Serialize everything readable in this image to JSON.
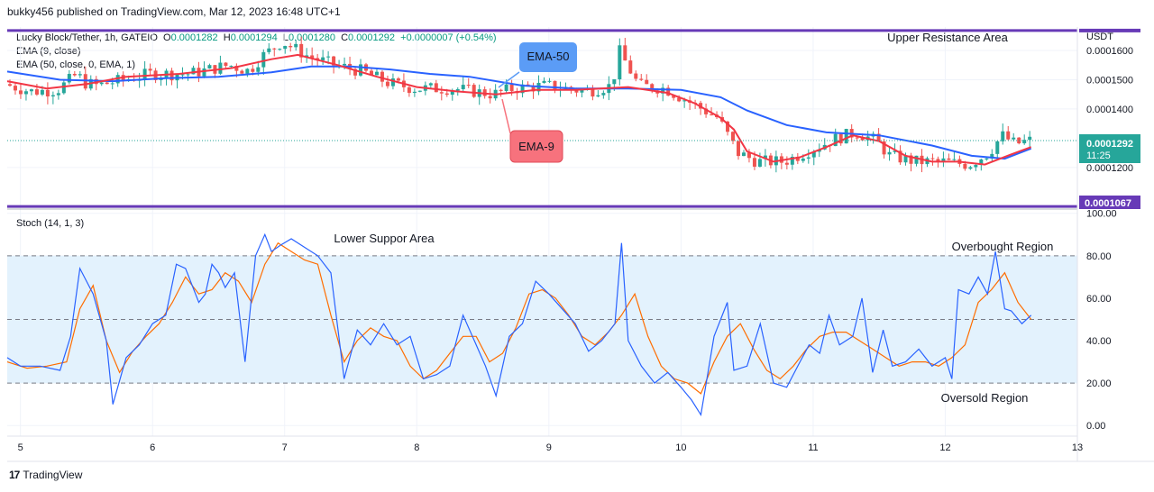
{
  "header": {
    "publisher_text": "bukky456 published on TradingView.com, Mar 12, 2023 16:48 UTC+1"
  },
  "footer": {
    "brand": "TradingView",
    "logo_glyph": "17"
  },
  "legend": {
    "symbol": "Lucky Block/Tether, 1h, GATEIO",
    "o_label": "O",
    "o_value": "0.0001282",
    "h_label": "H",
    "h_value": "0.0001294",
    "l_label": "L",
    "l_value": "0.0001280",
    "c_label": "C",
    "c_value": "0.0001292",
    "change": "+0.0000007 (+0.54%)",
    "ema9": "EMA (9, close)",
    "ema50": "EMA (50, close, 0, EMA, 1)"
  },
  "price_axis": {
    "currency": "USDT",
    "ticks": [
      "0.0001600",
      "0.0001500",
      "0.0001400",
      "0.0001200"
    ],
    "tick_values": [
      0.00016,
      0.00015,
      0.00014,
      0.00012
    ],
    "current_price": "0.0001292",
    "current_price_value": 0.0001292,
    "countdown": "11:25",
    "support_label": "0.0001067",
    "support_value": 0.0001067,
    "resistance_value": 0.0001668,
    "ymin": 0.0001058,
    "ymax": 0.000168
  },
  "stoch_axis": {
    "ticks": [
      "100.00",
      "80.00",
      "60.00",
      "40.00",
      "20.00",
      "0.00"
    ],
    "tick_values": [
      100,
      80,
      60,
      40,
      20,
      0
    ],
    "title": "Stoch (14, 1, 3)"
  },
  "x_axis": {
    "labels": [
      "5",
      "6",
      "7",
      "8",
      "9",
      "10",
      "11",
      "12",
      "13"
    ],
    "values": [
      5,
      6,
      7,
      8,
      9,
      10,
      11,
      12,
      13
    ]
  },
  "annotations": {
    "upper_resistance": "Upper Resistance Area",
    "lower_support": "Lower Suppor Area",
    "overbought": "Overbought Region",
    "oversold": "Oversold Region",
    "ema50_callout": "EMA-50",
    "ema9_callout": "EMA-9"
  },
  "colors": {
    "up": "#26a69a",
    "down": "#ef5350",
    "ema9": "#f23645",
    "ema50": "#2962ff",
    "level_line": "#673ab7",
    "stoch_k": "#2962ff",
    "stoch_d": "#ff6d00",
    "band_fill": "#e3f2fd",
    "grid": "#f0f3fa",
    "callout_blue": "#5b9cf6",
    "callout_red": "#f7727d"
  },
  "chart_data": [
    {
      "type": "candlestick",
      "title": "Lucky Block/Tether, 1h, GATEIO",
      "xlabel": "",
      "ylabel": "USDT",
      "xlim": [
        4.9,
        13.0
      ],
      "ylim": [
        0.0001058,
        0.000168
      ],
      "price_path_x": [
        4.9,
        5.1,
        5.3,
        5.45,
        5.5,
        5.6,
        5.8,
        6.0,
        6.3,
        6.6,
        6.75,
        6.85,
        7.0,
        7.2,
        7.4,
        7.6,
        7.8,
        8.0,
        8.3,
        8.6,
        8.75,
        9.0,
        9.3,
        9.5,
        9.55,
        9.7,
        9.9,
        10.1,
        10.3,
        10.45,
        10.6,
        10.8,
        11.0,
        11.2,
        11.35,
        11.5,
        11.6,
        11.8,
        12.0,
        12.2,
        12.35,
        12.45,
        12.55,
        12.65
      ],
      "price_path_y": [
        0.0001485,
        0.000146,
        0.0001465,
        0.000152,
        0.000149,
        0.000148,
        0.00015,
        0.000152,
        0.000152,
        0.000155,
        0.000153,
        0.000158,
        0.000163,
        0.000158,
        0.000155,
        0.000153,
        0.000149,
        0.000147,
        0.000147,
        0.000145,
        0.000147,
        0.000148,
        0.000146,
        0.000148,
        0.00016,
        0.000148,
        0.000147,
        0.000142,
        0.000137,
        0.000125,
        0.000122,
        0.000122,
        0.000126,
        0.00013,
        0.000132,
        0.000129,
        0.000124,
        0.000122,
        0.000122,
        0.000121,
        0.000125,
        0.000131,
        0.000128,
        0.0001292
      ],
      "ema9": {
        "name": "EMA (9, close)",
        "x": [
          4.9,
          5.2,
          5.5,
          5.8,
          6.2,
          6.6,
          6.9,
          7.1,
          7.4,
          7.7,
          8.0,
          8.3,
          8.6,
          8.9,
          9.2,
          9.6,
          9.9,
          10.1,
          10.3,
          10.4,
          10.5,
          10.7,
          10.9,
          11.1,
          11.3,
          11.5,
          11.7,
          11.9,
          12.1,
          12.3,
          12.5,
          12.65
        ],
        "y": [
          0.0001495,
          0.000147,
          0.0001485,
          0.000151,
          0.000152,
          0.000154,
          0.000157,
          0.0001585,
          0.000155,
          0.000151,
          0.0001475,
          0.000146,
          0.000145,
          0.0001465,
          0.0001465,
          0.0001475,
          0.0001455,
          0.000142,
          0.000137,
          0.000133,
          0.0001255,
          0.000122,
          0.0001235,
          0.000127,
          0.000131,
          0.000129,
          0.000124,
          0.000122,
          0.000122,
          0.000121,
          0.0001245,
          0.000127
        ]
      },
      "ema50": {
        "name": "EMA (50, close, 0, EMA, 1)",
        "x": [
          4.9,
          5.3,
          5.7,
          6.1,
          6.5,
          6.9,
          7.2,
          7.5,
          7.8,
          8.1,
          8.4,
          8.8,
          9.2,
          9.6,
          10.0,
          10.3,
          10.5,
          10.8,
          11.1,
          11.5,
          11.9,
          12.2,
          12.45,
          12.65
        ],
        "y": [
          0.0001528,
          0.00015,
          0.0001495,
          0.0001505,
          0.000151,
          0.0001525,
          0.0001545,
          0.0001545,
          0.0001535,
          0.000152,
          0.000151,
          0.000148,
          0.000147,
          0.000147,
          0.0001465,
          0.000144,
          0.0001395,
          0.0001345,
          0.000132,
          0.000131,
          0.0001275,
          0.000124,
          0.000123,
          0.0001265
        ]
      },
      "levels": [
        {
          "label": "Upper Resistance Area",
          "value": 0.0001668
        },
        {
          "label": "Lower Suppor Area",
          "value": 0.0001067
        }
      ]
    },
    {
      "type": "line",
      "title": "Stoch (14, 1, 3)",
      "xlabel": "",
      "ylabel": "",
      "xlim": [
        4.9,
        13.0
      ],
      "ylim": [
        -5,
        102
      ],
      "bands": {
        "upper": 80,
        "middle": 50,
        "lower": 20
      },
      "series": [
        {
          "name": "%K",
          "x": [
            4.9,
            5.0,
            5.15,
            5.3,
            5.38,
            5.45,
            5.55,
            5.65,
            5.7,
            5.8,
            5.9,
            6.0,
            6.1,
            6.18,
            6.25,
            6.35,
            6.4,
            6.45,
            6.5,
            6.55,
            6.62,
            6.7,
            6.78,
            6.85,
            6.9,
            6.97,
            7.05,
            7.15,
            7.25,
            7.35,
            7.45,
            7.55,
            7.65,
            7.75,
            7.85,
            7.95,
            8.05,
            8.15,
            8.25,
            8.35,
            8.45,
            8.52,
            8.6,
            8.7,
            8.8,
            8.9,
            9.0,
            9.1,
            9.2,
            9.3,
            9.4,
            9.5,
            9.55,
            9.6,
            9.7,
            9.8,
            9.9,
            10.0,
            10.08,
            10.15,
            10.25,
            10.35,
            10.4,
            10.5,
            10.6,
            10.7,
            10.8,
            10.9,
            10.97,
            11.05,
            11.12,
            11.2,
            11.3,
            11.37,
            11.45,
            11.53,
            11.6,
            11.7,
            11.8,
            11.9,
            12.0,
            12.05,
            12.1,
            12.18,
            12.25,
            12.32,
            12.38,
            12.45,
            12.5,
            12.58,
            12.65
          ],
          "y": [
            32,
            28,
            28,
            26,
            42,
            74,
            62,
            40,
            10,
            32,
            38,
            48,
            52,
            76,
            74,
            58,
            62,
            76,
            72,
            65,
            72,
            30,
            80,
            90,
            82,
            85,
            88,
            84,
            80,
            72,
            22,
            45,
            38,
            48,
            38,
            42,
            22,
            24,
            28,
            52,
            38,
            28,
            14,
            42,
            48,
            68,
            62,
            55,
            48,
            35,
            40,
            48,
            86,
            40,
            28,
            20,
            25,
            18,
            12,
            5,
            42,
            58,
            26,
            28,
            48,
            20,
            18,
            30,
            38,
            34,
            52,
            38,
            42,
            60,
            25,
            45,
            28,
            30,
            36,
            28,
            32,
            22,
            64,
            62,
            70,
            62,
            82,
            55,
            54,
            48,
            52
          ]
        },
        {
          "name": "%D",
          "x": [
            4.9,
            5.05,
            5.2,
            5.35,
            5.45,
            5.55,
            5.65,
            5.75,
            5.85,
            5.95,
            6.05,
            6.15,
            6.25,
            6.35,
            6.45,
            6.55,
            6.65,
            6.75,
            6.85,
            6.95,
            7.05,
            7.15,
            7.25,
            7.35,
            7.45,
            7.55,
            7.65,
            7.75,
            7.85,
            7.95,
            8.05,
            8.15,
            8.25,
            8.35,
            8.45,
            8.55,
            8.65,
            8.75,
            8.85,
            8.95,
            9.05,
            9.15,
            9.25,
            9.35,
            9.45,
            9.55,
            9.65,
            9.75,
            9.85,
            9.95,
            10.05,
            10.15,
            10.25,
            10.35,
            10.45,
            10.55,
            10.65,
            10.75,
            10.85,
            10.95,
            11.05,
            11.15,
            11.25,
            11.35,
            11.45,
            11.55,
            11.65,
            11.75,
            11.85,
            11.95,
            12.05,
            12.15,
            12.25,
            12.35,
            12.45,
            12.55,
            12.65
          ],
          "y": [
            30,
            27,
            28,
            30,
            55,
            66,
            40,
            25,
            35,
            42,
            48,
            58,
            70,
            62,
            64,
            72,
            68,
            58,
            76,
            86,
            82,
            78,
            76,
            52,
            30,
            40,
            46,
            42,
            40,
            28,
            22,
            26,
            34,
            42,
            42,
            30,
            34,
            46,
            62,
            64,
            60,
            52,
            42,
            38,
            44,
            52,
            62,
            42,
            28,
            22,
            20,
            15,
            30,
            42,
            48,
            36,
            26,
            22,
            28,
            36,
            42,
            44,
            44,
            40,
            36,
            32,
            28,
            30,
            30,
            28,
            32,
            38,
            58,
            64,
            72,
            58,
            50
          ]
        }
      ]
    }
  ]
}
